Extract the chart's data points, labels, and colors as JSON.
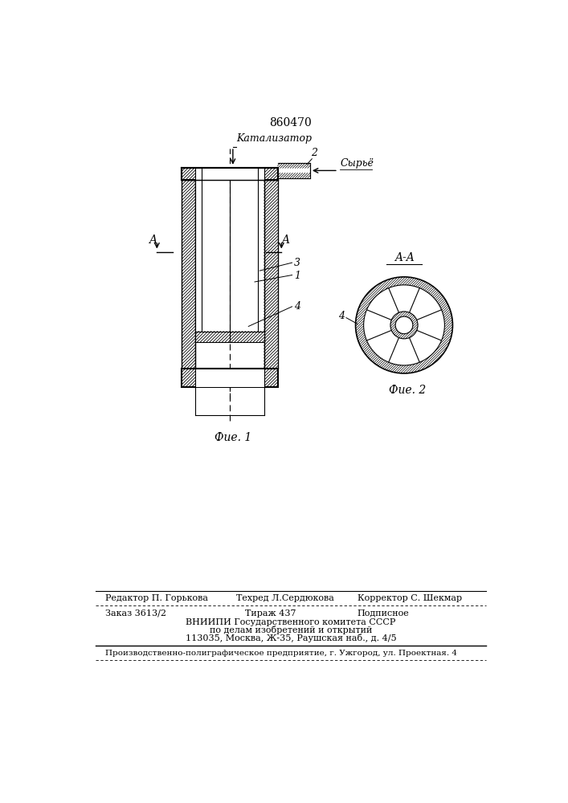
{
  "patent_number": "860470",
  "fig1_label": "Фие. 1",
  "fig2_label": "Фие. 2",
  "aa_label": "A-A",
  "kataliz_label": "Kатализатор",
  "syrye_label": "Cырьё",
  "label_A": "A",
  "num1": "1",
  "num2": "2",
  "num3": "3",
  "num4": "4",
  "footer_editor": "Редактор П. Горькова",
  "footer_tech": "Техред Л.Сердюкова",
  "footer_corr": "Корректор С. Шекмар",
  "footer_order": "Заказ 3613/2",
  "footer_tirazh": "Тираж 437",
  "footer_podp": "Подписное",
  "footer_vniip1": "ВНИИПИ Государственного комитета СССР",
  "footer_vniip2": "по делам изобретений и открытий",
  "footer_addr": "113035, Москва, Ж-35, Раушская наб., д. 4/5",
  "footer_prod": "Производственно-полиграфическое предприятие, г. Ужгород, ул. Проектная. 4",
  "bg_color": "#ffffff",
  "line_color": "#000000"
}
